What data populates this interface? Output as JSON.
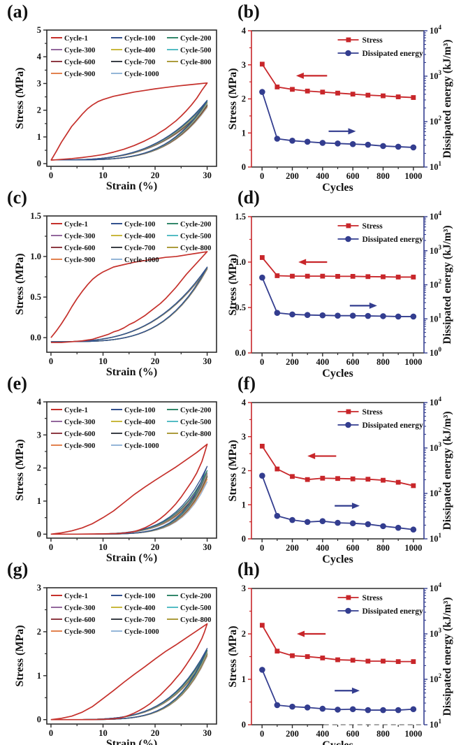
{
  "figure": {
    "background": "#ffffff"
  },
  "colors": {
    "stress_red": "#C8262A",
    "energy_blue": "#333D8F",
    "frame_dark": "#2b2b2b"
  },
  "cycle_legend": {
    "labels": [
      "Cycle-1",
      "Cycle-100",
      "Cycle-200",
      "Cycle-300",
      "Cycle-400",
      "Cycle-500",
      "Cycle-600",
      "Cycle-700",
      "Cycle-800",
      "Cycle-900",
      "Cycle-1000"
    ],
    "colors": [
      "#C5302B",
      "#33518E",
      "#33876B",
      "#93689D",
      "#C9B83E",
      "#55BCC4",
      "#8E3B44",
      "#3B3F46",
      "#AC9C3D",
      "#E2824F",
      "#94B6D8"
    ]
  },
  "series_legend": {
    "stress_label": "Stress",
    "dissipated_label": "Dissipated energy"
  },
  "chart_data": [
    {
      "id": "a",
      "panel_label": "(a)",
      "type": "line",
      "subtype": "hysteresis",
      "xlabel": "Strain (%)",
      "ylabel": "Stress (MPa)",
      "xlim": [
        -0.8,
        31.8
      ],
      "xticks": [
        0,
        10,
        20,
        30
      ],
      "ylim": [
        -0.1,
        5
      ],
      "yticks": [
        0,
        1,
        2,
        3,
        4,
        5
      ],
      "ytick_decimals": 0,
      "cycle1": {
        "load": [
          [
            0,
            0.12
          ],
          [
            1,
            0.45
          ],
          [
            2,
            0.8
          ],
          [
            3,
            1.1
          ],
          [
            4,
            1.4
          ],
          [
            5,
            1.62
          ],
          [
            6,
            1.85
          ],
          [
            7,
            2.05
          ],
          [
            8,
            2.2
          ],
          [
            9,
            2.32
          ],
          [
            10,
            2.4
          ],
          [
            12,
            2.52
          ],
          [
            14,
            2.6
          ],
          [
            16,
            2.68
          ],
          [
            18,
            2.74
          ],
          [
            20,
            2.8
          ],
          [
            22,
            2.85
          ],
          [
            24,
            2.9
          ],
          [
            26,
            2.94
          ],
          [
            28,
            2.98
          ],
          [
            30,
            3.02
          ]
        ],
        "unload": [
          [
            30,
            3.02
          ],
          [
            29,
            2.75
          ],
          [
            28,
            2.45
          ],
          [
            27,
            2.2
          ],
          [
            26,
            1.98
          ],
          [
            25,
            1.78
          ],
          [
            24,
            1.6
          ],
          [
            23,
            1.45
          ],
          [
            22,
            1.3
          ],
          [
            21,
            1.18
          ],
          [
            20,
            1.05
          ],
          [
            18,
            0.85
          ],
          [
            16,
            0.68
          ],
          [
            14,
            0.54
          ],
          [
            12,
            0.43
          ],
          [
            10,
            0.34
          ],
          [
            8,
            0.28
          ],
          [
            6,
            0.23
          ],
          [
            4,
            0.19
          ],
          [
            2,
            0.16
          ],
          [
            0,
            0.13
          ]
        ]
      },
      "band": {
        "peaks": [
          2.37,
          2.33,
          2.3,
          2.27,
          2.24,
          2.21,
          2.18,
          2.16,
          2.13,
          2.1
        ],
        "base": 0.14,
        "load_exp": 3.2,
        "unload_exp": 4.2
      }
    },
    {
      "id": "b",
      "panel_label": "(b)",
      "type": "line",
      "subtype": "dual-axis",
      "xlabel": "Cycles",
      "ylabel_left": "Stress (MPa)",
      "ylabel_right": "Dissipated energy (kJ/m³)",
      "x": [
        1,
        100,
        200,
        300,
        400,
        500,
        600,
        700,
        800,
        900,
        1000
      ],
      "xticks": [
        0,
        200,
        400,
        600,
        800,
        1000
      ],
      "xlim": [
        -70,
        1070
      ],
      "left_ylim": [
        0,
        4
      ],
      "left_yticks": [
        0,
        1,
        2,
        3,
        4
      ],
      "left_ytick_decimals": 0,
      "right_decades": [
        1,
        4
      ],
      "stress": [
        3.02,
        2.35,
        2.28,
        2.23,
        2.2,
        2.17,
        2.14,
        2.11,
        2.09,
        2.06,
        2.04
      ],
      "dissipated_kJ_m3": [
        450,
        42,
        38,
        36,
        34,
        33,
        32,
        31,
        29,
        28,
        27
      ],
      "arrows": {
        "red": {
          "x1": 430,
          "x2": 225,
          "y": 2.68
        },
        "blue": {
          "x1": 440,
          "x2": 620,
          "y": 1.05
        }
      },
      "dashed_bottom_right": false
    },
    {
      "id": "c",
      "panel_label": "(c)",
      "type": "line",
      "subtype": "hysteresis",
      "xlabel": "Strain (%)",
      "ylabel": "Stress (MPa)",
      "xlim": [
        -0.8,
        31.8
      ],
      "xticks": [
        0,
        10,
        20,
        30
      ],
      "ylim": [
        -0.18,
        1.5
      ],
      "yticks": [
        0.0,
        0.5,
        1.0,
        1.5
      ],
      "ytick_decimals": 1,
      "cycle1": {
        "load": [
          [
            0,
            0.0
          ],
          [
            1,
            0.08
          ],
          [
            2,
            0.17
          ],
          [
            3,
            0.27
          ],
          [
            4,
            0.38
          ],
          [
            5,
            0.48
          ],
          [
            6,
            0.57
          ],
          [
            7,
            0.65
          ],
          [
            8,
            0.72
          ],
          [
            9,
            0.77
          ],
          [
            10,
            0.81
          ],
          [
            12,
            0.87
          ],
          [
            14,
            0.9
          ],
          [
            16,
            0.93
          ],
          [
            18,
            0.95
          ],
          [
            20,
            0.97
          ],
          [
            22,
            0.99
          ],
          [
            24,
            1.0
          ],
          [
            26,
            1.02
          ],
          [
            28,
            1.04
          ],
          [
            30,
            1.06
          ]
        ],
        "unload": [
          [
            30,
            1.06
          ],
          [
            29,
            0.99
          ],
          [
            28,
            0.92
          ],
          [
            27,
            0.85
          ],
          [
            26,
            0.78
          ],
          [
            25,
            0.7
          ],
          [
            24,
            0.62
          ],
          [
            23,
            0.55
          ],
          [
            22,
            0.48
          ],
          [
            21,
            0.42
          ],
          [
            20,
            0.37
          ],
          [
            19,
            0.32
          ],
          [
            18,
            0.27
          ],
          [
            17,
            0.23
          ],
          [
            16,
            0.19
          ],
          [
            15,
            0.16
          ],
          [
            14,
            0.12
          ],
          [
            13,
            0.09
          ],
          [
            12,
            0.07
          ],
          [
            11,
            0.04
          ],
          [
            10,
            0.02
          ],
          [
            9,
            0.0
          ],
          [
            8,
            -0.02
          ],
          [
            6,
            -0.04
          ],
          [
            4,
            -0.05
          ],
          [
            2,
            -0.06
          ],
          [
            0,
            -0.06
          ]
        ]
      },
      "band": {
        "peaks": [
          0.87,
          0.866,
          0.862,
          0.858,
          0.856,
          0.854,
          0.852,
          0.85,
          0.846,
          0.842
        ],
        "base": -0.05,
        "load_exp": 3.0,
        "unload_exp": 3.9
      }
    },
    {
      "id": "d",
      "panel_label": "(d)",
      "type": "line",
      "subtype": "dual-axis",
      "xlabel": "Cycles",
      "ylabel_left": "Stress (MPa)",
      "ylabel_right": "Dissipated energy (kJ/m³)",
      "x": [
        1,
        100,
        200,
        300,
        400,
        500,
        600,
        700,
        800,
        900,
        1000
      ],
      "xticks": [
        0,
        200,
        400,
        600,
        800,
        1000
      ],
      "xlim": [
        -70,
        1070
      ],
      "left_ylim": [
        0,
        1.5
      ],
      "left_yticks": [
        0.0,
        0.5,
        1.0,
        1.5
      ],
      "left_ytick_decimals": 1,
      "right_decades": [
        0,
        4
      ],
      "stress": [
        1.05,
        0.85,
        0.845,
        0.845,
        0.845,
        0.843,
        0.843,
        0.84,
        0.838,
        0.835,
        0.835
      ],
      "dissipated_kJ_m3": [
        163,
        15,
        13.5,
        13,
        12.7,
        12.4,
        12.4,
        12.2,
        12,
        11.7,
        11.7
      ],
      "arrows": {
        "red": {
          "x1": 430,
          "x2": 240,
          "y": 1.0
        },
        "blue": {
          "x1": 580,
          "x2": 760,
          "y": 0.52
        }
      },
      "dashed_bottom_right": false
    },
    {
      "id": "e",
      "panel_label": "(e)",
      "type": "line",
      "subtype": "hysteresis",
      "xlabel": "Strain (%)",
      "ylabel": "Stress (MPa)",
      "xlim": [
        -0.8,
        31.8
      ],
      "xticks": [
        0,
        10,
        20,
        30
      ],
      "ylim": [
        -0.12,
        4
      ],
      "yticks": [
        0,
        1,
        2,
        3,
        4
      ],
      "ytick_decimals": 0,
      "cycle1": {
        "load": [
          [
            0,
            0
          ],
          [
            2,
            0.04
          ],
          [
            4,
            0.1
          ],
          [
            6,
            0.19
          ],
          [
            8,
            0.32
          ],
          [
            10,
            0.5
          ],
          [
            12,
            0.7
          ],
          [
            14,
            0.95
          ],
          [
            16,
            1.2
          ],
          [
            18,
            1.42
          ],
          [
            20,
            1.63
          ],
          [
            22,
            1.83
          ],
          [
            24,
            2.03
          ],
          [
            26,
            2.25
          ],
          [
            28,
            2.47
          ],
          [
            30,
            2.72
          ]
        ],
        "unload": [
          [
            30,
            2.72
          ],
          [
            29.5,
            2.45
          ],
          [
            29,
            2.2
          ],
          [
            28,
            1.85
          ],
          [
            27,
            1.58
          ],
          [
            26,
            1.35
          ],
          [
            25,
            1.12
          ],
          [
            24,
            0.92
          ],
          [
            23,
            0.75
          ],
          [
            22,
            0.6
          ],
          [
            21,
            0.47
          ],
          [
            20,
            0.36
          ],
          [
            19,
            0.27
          ],
          [
            18,
            0.19
          ],
          [
            17,
            0.13
          ],
          [
            16,
            0.08
          ],
          [
            15,
            0.05
          ],
          [
            13,
            0.02
          ],
          [
            10,
            0.01
          ],
          [
            5,
            0
          ],
          [
            0,
            0
          ]
        ]
      },
      "band": {
        "peaks": [
          2.05,
          1.92,
          1.85,
          1.82,
          1.8,
          1.78,
          1.75,
          1.72,
          1.66,
          1.58
        ],
        "base": 0.0,
        "load_exp": 5.0,
        "unload_exp": 6.5
      }
    },
    {
      "id": "f",
      "panel_label": "(f)",
      "type": "line",
      "subtype": "dual-axis",
      "xlabel": "Cycles",
      "ylabel_left": "Stress (MPa)",
      "ylabel_right": "Dissipated energy (kJ/m³)",
      "x": [
        1,
        100,
        200,
        300,
        400,
        500,
        600,
        700,
        800,
        900,
        1000
      ],
      "xticks": [
        0,
        200,
        400,
        600,
        800,
        1000
      ],
      "xlim": [
        -70,
        1070
      ],
      "left_ylim": [
        0,
        4
      ],
      "left_yticks": [
        0,
        1,
        2,
        3,
        4
      ],
      "left_ytick_decimals": 0,
      "right_decades": [
        1,
        4
      ],
      "stress": [
        2.72,
        2.05,
        1.83,
        1.74,
        1.78,
        1.77,
        1.76,
        1.75,
        1.72,
        1.66,
        1.56
      ],
      "dissipated_kJ_m3": [
        245,
        32,
        26,
        23.5,
        24.5,
        22.5,
        22,
        21,
        19,
        17.5,
        16
      ],
      "arrows": {
        "red": {
          "x1": 490,
          "x2": 300,
          "y": 2.43
        },
        "blue": {
          "x1": 480,
          "x2": 645,
          "y": 0.97
        }
      },
      "dashed_bottom_right": false
    },
    {
      "id": "g",
      "panel_label": "(g)",
      "type": "line",
      "subtype": "hysteresis",
      "xlabel": "Strain (%)",
      "ylabel": "Stress (MPa)",
      "xlim": [
        -0.8,
        31.8
      ],
      "xticks": [
        0,
        10,
        20,
        30
      ],
      "ylim": [
        -0.1,
        3
      ],
      "yticks": [
        0,
        1,
        2,
        3
      ],
      "ytick_decimals": 0,
      "cycle1": {
        "load": [
          [
            0,
            0
          ],
          [
            2,
            0.03
          ],
          [
            4,
            0.08
          ],
          [
            6,
            0.17
          ],
          [
            8,
            0.3
          ],
          [
            10,
            0.48
          ],
          [
            12,
            0.66
          ],
          [
            14,
            0.85
          ],
          [
            16,
            1.03
          ],
          [
            18,
            1.2
          ],
          [
            20,
            1.38
          ],
          [
            22,
            1.55
          ],
          [
            24,
            1.7
          ],
          [
            26,
            1.86
          ],
          [
            28,
            2.02
          ],
          [
            30,
            2.18
          ]
        ],
        "unload": [
          [
            30,
            2.18
          ],
          [
            29.5,
            2.0
          ],
          [
            29,
            1.85
          ],
          [
            28,
            1.62
          ],
          [
            27,
            1.43
          ],
          [
            26,
            1.25
          ],
          [
            25,
            1.08
          ],
          [
            24,
            0.94
          ],
          [
            23,
            0.8
          ],
          [
            22,
            0.68
          ],
          [
            21,
            0.56
          ],
          [
            20,
            0.46
          ],
          [
            19,
            0.36
          ],
          [
            18,
            0.28
          ],
          [
            17,
            0.21
          ],
          [
            16,
            0.15
          ],
          [
            15,
            0.1
          ],
          [
            14,
            0.06
          ],
          [
            13,
            0.03
          ],
          [
            11,
            0.01
          ],
          [
            8,
            0
          ],
          [
            4,
            0
          ],
          [
            0,
            0
          ]
        ]
      },
      "band": {
        "peaks": [
          1.62,
          1.58,
          1.56,
          1.54,
          1.52,
          1.51,
          1.5,
          1.48,
          1.46,
          1.44
        ],
        "base": 0.0,
        "load_exp": 4.2,
        "unload_exp": 5.4
      }
    },
    {
      "id": "h",
      "panel_label": "(h)",
      "type": "line",
      "subtype": "dual-axis",
      "xlabel": "Cycles",
      "ylabel_left": "Stress (MPa)",
      "ylabel_right": "Dissipated energy (kJ/m³)",
      "x": [
        1,
        100,
        200,
        300,
        400,
        500,
        600,
        700,
        800,
        900,
        1000
      ],
      "xticks": [
        0,
        200,
        400,
        600,
        800,
        1000
      ],
      "xlim": [
        -70,
        1070
      ],
      "left_ylim": [
        0,
        3
      ],
      "left_yticks": [
        0,
        1,
        2,
        3
      ],
      "left_ytick_decimals": 0,
      "right_decades": [
        1,
        4
      ],
      "stress": [
        2.19,
        1.62,
        1.52,
        1.5,
        1.47,
        1.43,
        1.42,
        1.4,
        1.4,
        1.39,
        1.39
      ],
      "dissipated_kJ_m3": [
        162,
        27,
        25,
        24,
        22.5,
        21.5,
        22,
        21,
        21,
        21,
        22
      ],
      "arrows": {
        "red": {
          "x1": 420,
          "x2": 230,
          "y": 2.0
        },
        "blue": {
          "x1": 480,
          "x2": 645,
          "y": 0.75
        }
      },
      "dashed_bottom_right": true
    }
  ]
}
